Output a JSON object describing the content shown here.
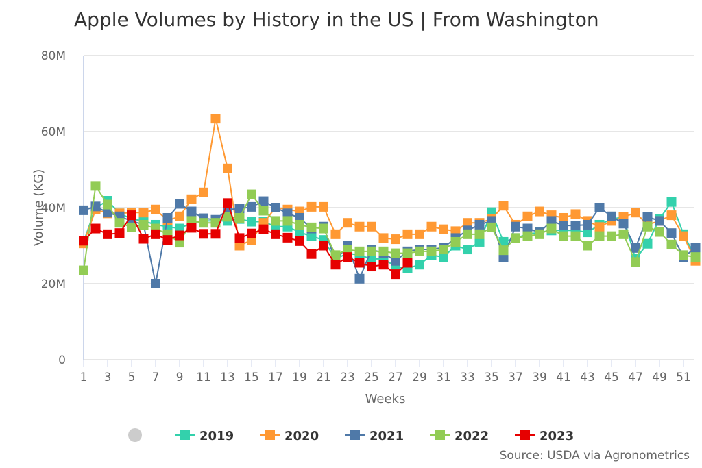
{
  "chart_data": {
    "type": "line",
    "title": "Apple Volumes by History in the US | From Washington",
    "source": "Source: USDA via Agronometrics",
    "xlabel": "Weeks",
    "ylabel": "Volume (KG)",
    "xlim": [
      1,
      52
    ],
    "ylim": [
      0,
      80
    ],
    "y_unit": "M",
    "yticks": [
      0,
      20,
      40,
      60,
      80
    ],
    "ytick_labels": [
      "0",
      "20M",
      "40M",
      "60M",
      "80M"
    ],
    "xticks": [
      1,
      3,
      5,
      7,
      9,
      11,
      13,
      15,
      17,
      19,
      21,
      23,
      25,
      27,
      29,
      31,
      33,
      35,
      37,
      39,
      41,
      43,
      45,
      47,
      49,
      51
    ],
    "grid": "horizontal",
    "legend": "bottom",
    "markers": "square",
    "series": [
      {
        "name": "2019",
        "color": "#33d1ac",
        "values": [
          31,
          40,
          41.8,
          38.5,
          37,
          36.5,
          35.5,
          35,
          34.5,
          36,
          36.5,
          36.5,
          36.5,
          37,
          36.3,
          36.3,
          35,
          35,
          33.5,
          32.5,
          31.5,
          26.5,
          28,
          27.5,
          26.5,
          26.5,
          24.5,
          24,
          25,
          27.5,
          27,
          30,
          29,
          31,
          38.8,
          31,
          32,
          33,
          33.5,
          34,
          34,
          34,
          33.5,
          35.5,
          37,
          37.5,
          26.5,
          30.5,
          37,
          41.5,
          33,
          27
        ]
      },
      {
        "name": "2020",
        "color": "#ff9933",
        "values": [
          30.6,
          39.5,
          38.5,
          38.5,
          38.7,
          38.7,
          39.5,
          36.6,
          37.7,
          42.2,
          44,
          63.4,
          50.3,
          30,
          31.5,
          36,
          40,
          39.5,
          39,
          40.2,
          40.2,
          33,
          36,
          35,
          35,
          32,
          31.7,
          33,
          33,
          35,
          34.3,
          33.8,
          36,
          36,
          37,
          40.5,
          35.5,
          37.7,
          39,
          38,
          37.3,
          38.3,
          36.5,
          34.9,
          36.5,
          37.5,
          38.7,
          35.5,
          36.5,
          38,
          32.5,
          26
        ]
      },
      {
        "name": "2021",
        "color": "#4f79a8",
        "values": [
          39.3,
          40.3,
          38.7,
          37.7,
          36.5,
          35.5,
          20,
          37.3,
          41,
          39,
          37.2,
          36.8,
          39.5,
          39.7,
          40.2,
          41.7,
          40,
          38.5,
          37.3,
          34.5,
          35,
          26,
          30,
          21.3,
          29,
          28,
          26,
          28.5,
          29,
          29,
          29.5,
          32,
          34,
          35.5,
          36.5,
          27,
          35,
          34.5,
          33.5,
          36.5,
          35.3,
          35.3,
          35.5,
          40,
          37.7,
          35.8,
          29.4,
          37.6,
          36.5,
          33.3,
          27,
          29.4
        ]
      },
      {
        "name": "2022",
        "color": "#92cc55",
        "values": [
          23.5,
          45.7,
          40.8,
          36,
          34.8,
          35.5,
          34.5,
          33,
          30.8,
          36.5,
          36,
          36,
          37.6,
          37.3,
          43.5,
          39.2,
          36.5,
          36.5,
          35.5,
          34.8,
          34.5,
          27.5,
          29,
          28.5,
          28.5,
          28.5,
          28,
          28,
          28.5,
          28.5,
          29,
          31,
          33,
          33,
          34.8,
          28.8,
          32,
          32.5,
          33,
          34.5,
          32.5,
          32.5,
          30,
          32.5,
          32.5,
          33,
          25.7,
          35,
          33.6,
          30.3,
          27.5,
          27
        ]
      },
      {
        "name": "2023",
        "color": "#e60000",
        "values": [
          31.3,
          34.5,
          33,
          33.3,
          38,
          31.8,
          33,
          31.5,
          32.7,
          34.7,
          33.1,
          33.1,
          41.2,
          32,
          33.2,
          34.3,
          33,
          32.1,
          31.2,
          27.8,
          30,
          25,
          27,
          25.5,
          24.5,
          25,
          22.5,
          25.5
        ]
      }
    ]
  }
}
